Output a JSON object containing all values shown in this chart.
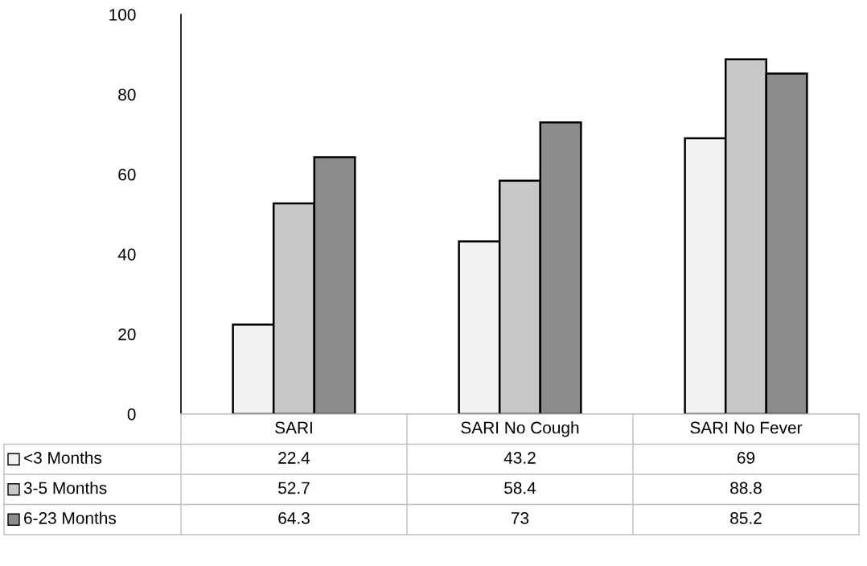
{
  "chart_data": {
    "type": "bar",
    "categories": [
      "SARI",
      "SARI No Cough",
      "SARI No Fever"
    ],
    "series": [
      {
        "name": "<3 Months",
        "color": "#f2f2f2",
        "values": [
          22.4,
          43.2,
          69
        ]
      },
      {
        "name": "3-5 Months",
        "color": "#c8c8c8",
        "values": [
          52.7,
          58.4,
          88.8
        ]
      },
      {
        "name": "6-23 Months",
        "color": "#8c8c8c",
        "values": [
          64.3,
          73,
          85.2
        ]
      }
    ],
    "ylim": [
      0,
      100
    ],
    "yticks": [
      0,
      20,
      40,
      60,
      80,
      100
    ],
    "grid": false,
    "legend": "bottom",
    "data_labels": true
  }
}
